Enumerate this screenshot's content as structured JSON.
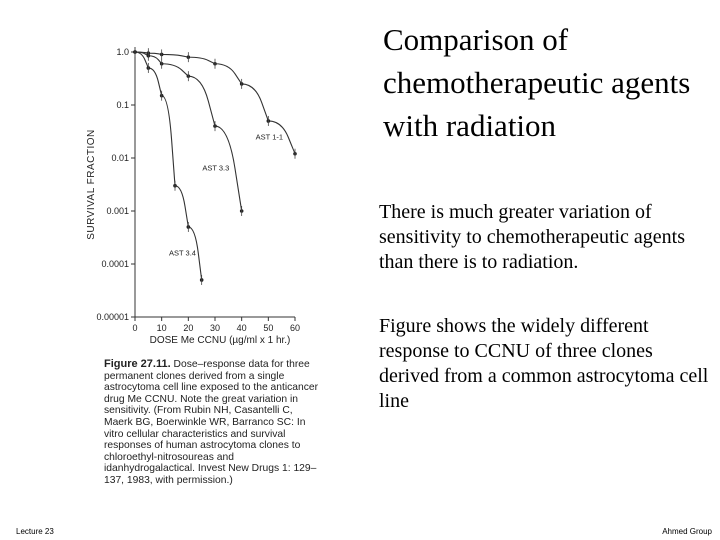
{
  "title": "Comparison of chemotherapeutic agents with radiation",
  "paragraphs": [
    "There is much greater variation of sensitivity to chemotherapeutic agents than there is to radiation.",
    "Figure shows the widely different response to CCNU of three clones derived from a common astrocytoma cell line"
  ],
  "figure_caption": {
    "number": "Figure 27.11.",
    "text": "Dose–response data for three permanent clones derived from a single astrocytoma cell line exposed to the anticancer drug Me CCNU. Note the great variation in sensitivity. (From Rubin NH, Casantelli C, Maerk BG, Boerwinkle WR, Barranco SC: In vitro cellular characteristics and survival responses of human astrocytoma clones to chloroethyl-nitrosoureas and idanhydrogalactical. Invest New Drugs 1: 129–137, 1983, with permission.)"
  },
  "footer": {
    "left": "Lecture 23",
    "right": "Ahmed Group"
  },
  "chart_data": {
    "type": "line",
    "xlabel": "DOSE Me CCNU (µg/ml x 1 hr.)",
    "ylabel": "SURVIVAL FRACTION",
    "xlim": [
      0,
      60
    ],
    "ylim": [
      1e-05,
      1.0
    ],
    "yscale": "log",
    "x_ticks": [
      "0",
      "10",
      "20",
      "30",
      "40",
      "50",
      "60"
    ],
    "y_ticks": [
      "1.0",
      "0.1",
      "0.01",
      "0.001",
      "0.0001",
      "0.00001"
    ],
    "series": [
      {
        "name": "AST 1-1",
        "x": [
          0,
          5,
          10,
          20,
          30,
          40,
          50,
          60
        ],
        "y": [
          1.0,
          0.95,
          0.9,
          0.8,
          0.6,
          0.25,
          0.05,
          0.012
        ]
      },
      {
        "name": "AST 3.3",
        "x": [
          0,
          5,
          10,
          20,
          30,
          40
        ],
        "y": [
          1.0,
          0.85,
          0.6,
          0.35,
          0.04,
          0.001
        ]
      },
      {
        "name": "AST 3.4",
        "x": [
          0,
          5,
          10,
          15,
          20,
          25
        ],
        "y": [
          1.0,
          0.5,
          0.15,
          0.003,
          0.0005,
          5e-05
        ]
      }
    ]
  }
}
